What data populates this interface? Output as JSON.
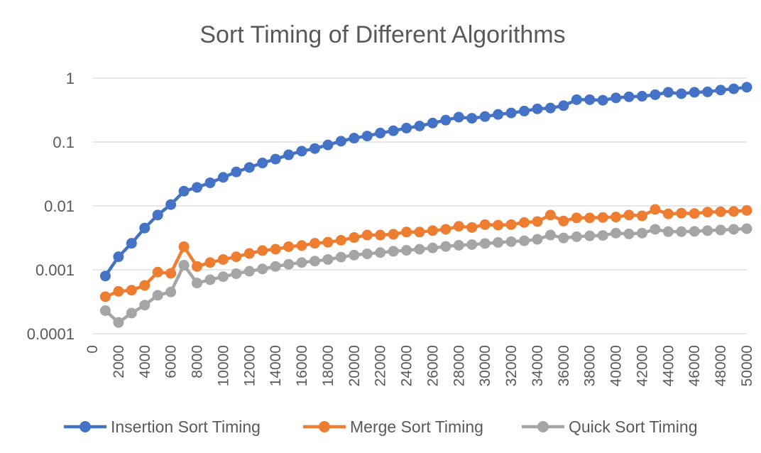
{
  "chart_data": {
    "type": "line",
    "title": "Sort Timing of Different Algorithms",
    "xlabel": "",
    "ylabel": "",
    "y_scale": "log",
    "ylim": [
      0.0001,
      1
    ],
    "y_ticks": [
      {
        "value": 1,
        "label": "1"
      },
      {
        "value": 0.1,
        "label": "0.1"
      },
      {
        "value": 0.01,
        "label": "0.01"
      },
      {
        "value": 0.001,
        "label": "0.001"
      },
      {
        "value": 0.0001,
        "label": "0.0001"
      }
    ],
    "x_ticks": [
      "0",
      "2000",
      "4000",
      "6000",
      "8000",
      "10000",
      "12000",
      "14000",
      "16000",
      "18000",
      "20000",
      "22000",
      "24000",
      "26000",
      "28000",
      "30000",
      "32000",
      "34000",
      "36000",
      "38000",
      "40000",
      "42000",
      "44000",
      "46000",
      "48000",
      "50000"
    ],
    "x": [
      1000,
      2000,
      3000,
      4000,
      5000,
      6000,
      7000,
      8000,
      9000,
      10000,
      11000,
      12000,
      13000,
      14000,
      15000,
      16000,
      17000,
      18000,
      19000,
      20000,
      21000,
      22000,
      23000,
      24000,
      25000,
      26000,
      27000,
      28000,
      29000,
      30000,
      31000,
      32000,
      33000,
      34000,
      35000,
      36000,
      37000,
      38000,
      39000,
      40000,
      41000,
      42000,
      43000,
      44000,
      45000,
      46000,
      47000,
      48000,
      49000,
      50000
    ],
    "grid": "horizontal",
    "legend_position": "bottom",
    "series": [
      {
        "name": "Insertion Sort Timing",
        "color": "#4472C4",
        "values": [
          0.0008,
          0.0016,
          0.0026,
          0.0045,
          0.0072,
          0.0105,
          0.017,
          0.0195,
          0.023,
          0.028,
          0.034,
          0.04,
          0.047,
          0.054,
          0.063,
          0.072,
          0.079,
          0.09,
          0.103,
          0.115,
          0.124,
          0.138,
          0.15,
          0.165,
          0.178,
          0.198,
          0.22,
          0.245,
          0.235,
          0.25,
          0.27,
          0.285,
          0.305,
          0.33,
          0.34,
          0.37,
          0.46,
          0.46,
          0.45,
          0.49,
          0.51,
          0.52,
          0.55,
          0.6,
          0.57,
          0.6,
          0.61,
          0.65,
          0.68,
          0.72
        ]
      },
      {
        "name": "Merge Sort Timing",
        "color": "#ED7D31",
        "values": [
          0.00038,
          0.00046,
          0.00048,
          0.00057,
          0.00092,
          0.00088,
          0.0023,
          0.00113,
          0.0013,
          0.00145,
          0.0016,
          0.0018,
          0.002,
          0.0021,
          0.0023,
          0.0024,
          0.0026,
          0.0027,
          0.0029,
          0.0032,
          0.0035,
          0.0035,
          0.0036,
          0.0039,
          0.0039,
          0.0041,
          0.0043,
          0.0048,
          0.0046,
          0.0051,
          0.005,
          0.0051,
          0.0055,
          0.0057,
          0.0072,
          0.0058,
          0.0065,
          0.0065,
          0.0066,
          0.0067,
          0.0072,
          0.007,
          0.0088,
          0.0075,
          0.0077,
          0.0076,
          0.008,
          0.0081,
          0.0082,
          0.0085
        ]
      },
      {
        "name": "Quick Sort Timing",
        "color": "#A5A5A5",
        "values": [
          0.00023,
          0.00015,
          0.00021,
          0.00028,
          0.0004,
          0.00045,
          0.00118,
          0.00062,
          0.0007,
          0.00078,
          0.00087,
          0.00095,
          0.00103,
          0.00113,
          0.00122,
          0.0013,
          0.00137,
          0.00145,
          0.00158,
          0.0017,
          0.00178,
          0.00186,
          0.00195,
          0.00202,
          0.0021,
          0.0022,
          0.00232,
          0.00242,
          0.00248,
          0.00258,
          0.00268,
          0.00276,
          0.00285,
          0.003,
          0.0035,
          0.00315,
          0.0033,
          0.0034,
          0.00345,
          0.00375,
          0.00365,
          0.00375,
          0.0043,
          0.00395,
          0.00395,
          0.004,
          0.0041,
          0.0042,
          0.0043,
          0.0044
        ]
      }
    ]
  }
}
